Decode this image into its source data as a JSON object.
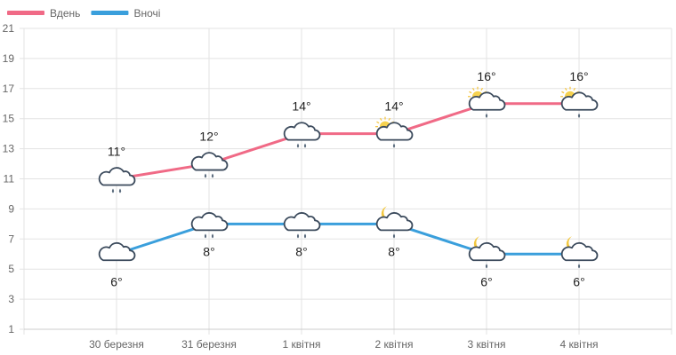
{
  "chart_data": {
    "type": "line",
    "categories": [
      "30 березня",
      "31 березня",
      "1 квітня",
      "2 квітня",
      "3 квітня",
      "4 квітня"
    ],
    "series": [
      {
        "name": "Вдень",
        "color": "#f06a86",
        "values": [
          11,
          12,
          14,
          14,
          16,
          16
        ],
        "labels": [
          "11°",
          "12°",
          "14°",
          "14°",
          "16°",
          "16°"
        ],
        "icons": [
          "cloud-rain-2",
          "cloud-rain-2",
          "cloud-rain-2",
          "sun-cloud-drop",
          "sun-cloud-drop",
          "sun-cloud-drop"
        ]
      },
      {
        "name": "Вночі",
        "color": "#3a9fdc",
        "values": [
          6,
          8,
          8,
          8,
          6,
          6
        ],
        "labels": [
          "6°",
          "8°",
          "8°",
          "8°",
          "6°",
          "6°"
        ],
        "icons": [
          "cloud",
          "cloud-rain-2",
          "cloud-rain-2",
          "moon-cloud-drop",
          "moon-cloud-drop",
          "moon-cloud-drop"
        ]
      }
    ],
    "ylim": [
      1,
      21
    ],
    "yticks": [
      "1",
      "3",
      "5",
      "7",
      "9",
      "11",
      "13",
      "15",
      "17",
      "19",
      "21"
    ],
    "grid": true,
    "legend": "top-left"
  }
}
